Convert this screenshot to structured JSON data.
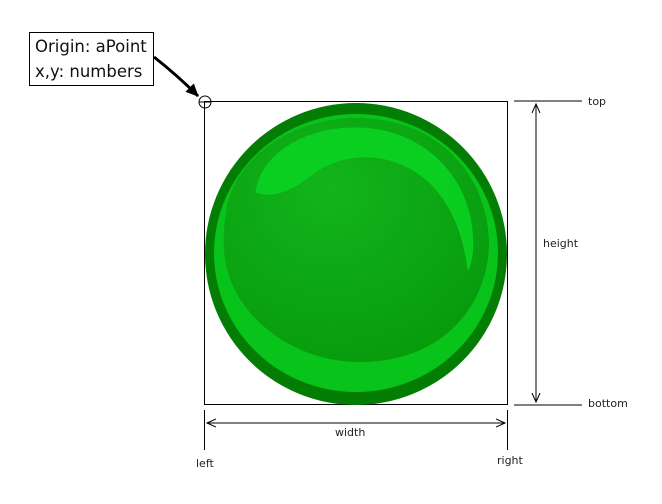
{
  "callout": {
    "line1": "Origin: aPoint",
    "line2": "x,y: numbers"
  },
  "labels": {
    "top": "top",
    "bottom": "bottom",
    "height": "height",
    "width": "width",
    "left": "left",
    "right": "right"
  },
  "colors": {
    "circle_outer": "#047d04",
    "circle_fill": "#0aa10a",
    "circle_highlight": "#0bcf1f",
    "line": "#000000"
  }
}
